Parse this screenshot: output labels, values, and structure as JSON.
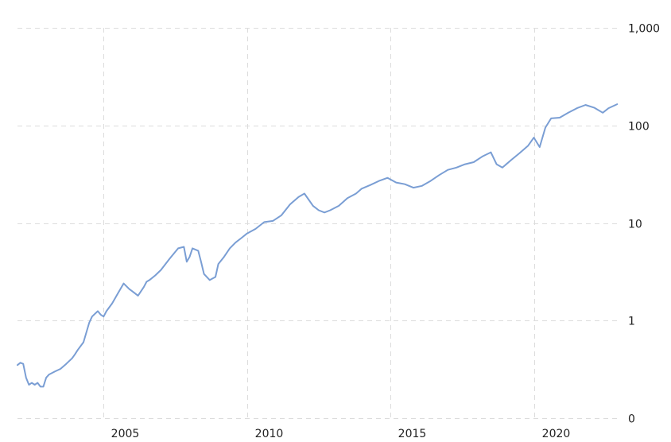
{
  "chart_data": {
    "type": "line",
    "title": "",
    "xlabel": "",
    "ylabel": "",
    "y_scale": "log",
    "grid": true,
    "legend": "none",
    "xlim": [
      2002.0,
      2022.95
    ],
    "y_axis_side": "right",
    "x_ticks": [
      {
        "value": 2005,
        "label": "2005"
      },
      {
        "value": 2010,
        "label": "2010"
      },
      {
        "value": 2015,
        "label": "2015"
      },
      {
        "value": 2020,
        "label": "2020"
      }
    ],
    "y_ticks": [
      {
        "value": 1000,
        "label": "1,000"
      },
      {
        "value": 100,
        "label": "100"
      },
      {
        "value": 10,
        "label": "10"
      },
      {
        "value": 1,
        "label": "1"
      },
      {
        "value": 0.1,
        "label": "0"
      }
    ],
    "ylim": [
      0.1,
      1000
    ],
    "colors": {
      "line": "#7a9ed4",
      "grid": "#dcdcdc",
      "text": "#222222"
    },
    "series": [
      {
        "x": [
          2002.0,
          2002.1,
          2002.2,
          2002.3,
          2002.4,
          2002.5,
          2002.6,
          2002.7,
          2002.8,
          2002.9,
          2003.0,
          2003.1,
          2003.3,
          2003.5,
          2003.7,
          2003.9,
          2004.0,
          2004.1,
          2004.3,
          2004.5,
          2004.6,
          2004.8,
          2004.9,
          2005.0,
          2005.1,
          2005.3,
          2005.5,
          2005.7,
          2005.9,
          2006.0,
          2006.2,
          2006.4,
          2006.5,
          2006.6,
          2006.8,
          2007.0,
          2007.3,
          2007.6,
          2007.8,
          2007.9,
          2008.0,
          2008.1,
          2008.3,
          2008.4,
          2008.5,
          2008.7,
          2008.9,
          2009.0,
          2009.2,
          2009.4,
          2009.6,
          2009.8,
          2010.0,
          2010.3,
          2010.6,
          2010.9,
          2011.2,
          2011.5,
          2011.8,
          2012.0,
          2012.3,
          2012.5,
          2012.7,
          2012.9,
          2013.2,
          2013.5,
          2013.8,
          2014.0,
          2014.3,
          2014.6,
          2014.9,
          2015.2,
          2015.5,
          2015.8,
          2016.1,
          2016.4,
          2016.7,
          2017.0,
          2017.3,
          2017.6,
          2017.9,
          2018.2,
          2018.5,
          2018.7,
          2018.9,
          2019.2,
          2019.5,
          2019.8,
          2020.0,
          2020.2,
          2020.4,
          2020.6,
          2020.9,
          2021.2,
          2021.5,
          2021.8,
          2022.1,
          2022.4,
          2022.6,
          2022.9
        ],
        "y": [
          0.35,
          0.37,
          0.36,
          0.26,
          0.22,
          0.23,
          0.22,
          0.23,
          0.21,
          0.21,
          0.26,
          0.28,
          0.3,
          0.32,
          0.36,
          0.41,
          0.45,
          0.5,
          0.6,
          0.95,
          1.1,
          1.25,
          1.15,
          1.1,
          1.25,
          1.5,
          1.9,
          2.4,
          2.1,
          2.0,
          1.8,
          2.2,
          2.5,
          2.6,
          2.9,
          3.3,
          4.3,
          5.5,
          5.7,
          4.0,
          4.5,
          5.5,
          5.2,
          4.0,
          3.0,
          2.6,
          2.8,
          3.8,
          4.5,
          5.5,
          6.3,
          7.0,
          7.8,
          8.7,
          10.2,
          10.5,
          12.0,
          15.5,
          18.5,
          20.0,
          15.0,
          13.5,
          12.8,
          13.5,
          15.0,
          18.0,
          20.0,
          22.5,
          24.5,
          27.0,
          29.0,
          26.0,
          25.0,
          23.0,
          24.0,
          27.0,
          31.0,
          35.0,
          37.0,
          40.0,
          42.0,
          48.0,
          53.0,
          40.0,
          37.0,
          44.0,
          52.0,
          62.0,
          75.0,
          60.0,
          95.0,
          118.0,
          120.0,
          135.0,
          150.0,
          162.0,
          152.0,
          135.0,
          150.0,
          165.0
        ]
      }
    ]
  }
}
